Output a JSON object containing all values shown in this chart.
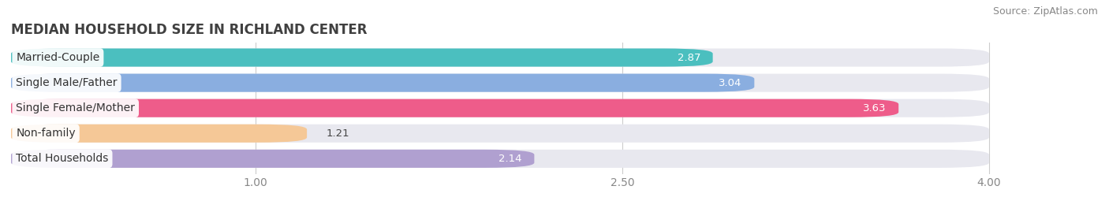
{
  "title": "MEDIAN HOUSEHOLD SIZE IN RICHLAND CENTER",
  "source": "Source: ZipAtlas.com",
  "categories": [
    "Married-Couple",
    "Single Male/Father",
    "Single Female/Mother",
    "Non-family",
    "Total Households"
  ],
  "values": [
    2.87,
    3.04,
    3.63,
    1.21,
    2.14
  ],
  "bar_colors": [
    "#4BBFBF",
    "#8AAEE0",
    "#EE5C8A",
    "#F5C897",
    "#B0A0D0"
  ],
  "xlim_left": 0.0,
  "xlim_right": 4.4,
  "xmin": 0.0,
  "xmax": 4.0,
  "xticks": [
    1.0,
    2.5,
    4.0
  ],
  "xticklabels": [
    "1.00",
    "2.50",
    "4.00"
  ],
  "bg_color": "#ffffff",
  "bar_bg_color": "#e8e8ef",
  "title_fontsize": 12,
  "source_fontsize": 9,
  "tick_fontsize": 10,
  "bar_label_fontsize": 10,
  "value_fontsize": 9.5,
  "bar_height": 0.72,
  "rounding": 0.2
}
